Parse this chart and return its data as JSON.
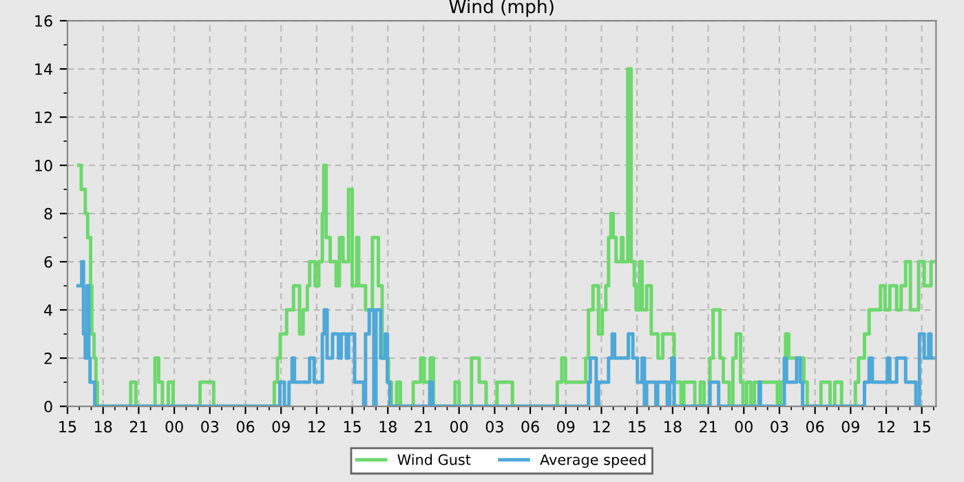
{
  "chart_data": {
    "type": "step",
    "title": "Wind (mph)",
    "legend": "bottom",
    "grid": true,
    "line_style": "solid",
    "marker": "none",
    "xlim": [
      15,
      88.2
    ],
    "ylim": [
      0,
      16
    ],
    "yticks": [
      0,
      2,
      4,
      6,
      8,
      10,
      12,
      14,
      16
    ],
    "xticks": [
      {
        "value": 15,
        "label": "15"
      },
      {
        "value": 18,
        "label": "18"
      },
      {
        "value": 21,
        "label": "21"
      },
      {
        "value": 24,
        "label": "00"
      },
      {
        "value": 27,
        "label": "03"
      },
      {
        "value": 30,
        "label": "06"
      },
      {
        "value": 33,
        "label": "09"
      },
      {
        "value": 36,
        "label": "12"
      },
      {
        "value": 39,
        "label": "15"
      },
      {
        "value": 42,
        "label": "18"
      },
      {
        "value": 45,
        "label": "21"
      },
      {
        "value": 48,
        "label": "00"
      },
      {
        "value": 51,
        "label": "03"
      },
      {
        "value": 54,
        "label": "06"
      },
      {
        "value": 57,
        "label": "09"
      },
      {
        "value": 60,
        "label": "12"
      },
      {
        "value": 63,
        "label": "15"
      },
      {
        "value": 66,
        "label": "18"
      },
      {
        "value": 69,
        "label": "21"
      },
      {
        "value": 72,
        "label": "00"
      },
      {
        "value": 75,
        "label": "03"
      },
      {
        "value": 78,
        "label": "06"
      },
      {
        "value": 81,
        "label": "09"
      },
      {
        "value": 84,
        "label": "12"
      },
      {
        "value": 87,
        "label": "15"
      }
    ],
    "series": [
      {
        "name": "Wind Gust",
        "color": "#6dd86d",
        "x": [
          15.96,
          16.16,
          16.5,
          16.7,
          16.95,
          17.05,
          17.24,
          17.4,
          17.52,
          20.33,
          20.76,
          22.38,
          22.69,
          23.0,
          23.5,
          23.9,
          26.17,
          27.32,
          32.43,
          32.7,
          32.93,
          33.47,
          34.05,
          34.56,
          34.86,
          35.21,
          35.41,
          35.87,
          36.18,
          36.48,
          36.6,
          36.8,
          37.14,
          37.64,
          37.92,
          38.22,
          38.69,
          39.0,
          39.38,
          39.54,
          40.12,
          40.7,
          41.2,
          41.52,
          42.05,
          42.3,
          42.75,
          43.06,
          44.14,
          44.76,
          45.06,
          45.57,
          45.84,
          47.66,
          48.01,
          49.05,
          49.7,
          50.28,
          51.2,
          52.5,
          56.28,
          56.66,
          56.97,
          58.68,
          58.91,
          59.29,
          59.75,
          60.07,
          60.37,
          60.6,
          60.8,
          60.99,
          61.23,
          61.69,
          61.81,
          62.22,
          62.5,
          62.77,
          62.92,
          63.23,
          63.43,
          63.81,
          64.2,
          64.77,
          65.17,
          66.13,
          66.71,
          66.94,
          67.49,
          67.87,
          68.33,
          68.65,
          69.14,
          69.41,
          69.99,
          70.27,
          70.77,
          71.08,
          71.35,
          71.73,
          71.93,
          72.24,
          72.59,
          72.89,
          74.83,
          75.1,
          75.52,
          75.79,
          77.06,
          77.34,
          78.5,
          79.27,
          79.66,
          80.24,
          81.4,
          81.67,
          82.17,
          82.56,
          83.52,
          83.9,
          84.3,
          84.88,
          85.26,
          85.64,
          86.04,
          86.73,
          87.2,
          87.78,
          87.96
        ],
        "values": [
          10,
          9,
          8,
          7,
          5,
          3,
          2,
          1,
          0,
          1,
          0,
          2,
          1,
          0,
          1,
          0,
          1,
          0,
          1,
          2,
          3,
          4,
          5,
          3,
          4,
          5,
          6,
          5,
          6,
          8,
          10,
          7,
          6,
          5,
          7,
          6,
          9,
          5,
          7,
          5,
          4,
          7,
          5,
          2,
          1,
          0,
          1,
          0,
          1,
          2,
          1,
          2,
          0,
          1,
          0,
          2,
          1,
          0,
          1,
          0,
          1,
          2,
          1,
          2,
          4,
          5,
          3,
          4,
          5,
          7,
          8,
          7,
          6,
          7,
          6,
          14,
          6,
          5,
          4,
          6,
          4,
          5,
          3,
          2,
          3,
          1,
          0,
          1,
          1,
          0,
          1,
          0,
          2,
          4,
          2,
          1,
          0,
          2,
          3,
          1,
          0,
          1,
          0,
          1,
          0,
          1,
          3,
          2,
          1,
          0,
          1,
          0,
          1,
          0,
          1,
          2,
          3,
          4,
          5,
          4,
          5,
          4,
          5,
          6,
          4,
          6,
          5,
          6,
          6
        ]
      },
      {
        "name": "Average speed",
        "color": "#4ea8d8",
        "x": [
          15.89,
          16.2,
          16.35,
          16.5,
          16.65,
          16.8,
          16.9,
          17.3,
          32.9,
          33.28,
          33.67,
          33.93,
          34.13,
          35.41,
          35.79,
          36.48,
          36.64,
          36.88,
          37.34,
          37.84,
          38.07,
          38.5,
          38.69,
          39.2,
          39.96,
          40.12,
          40.43,
          40.82,
          41.0,
          41.4,
          41.78,
          41.96,
          42.17,
          45.53,
          45.76,
          58.91,
          59.06,
          59.56,
          59.75,
          60.6,
          60.91,
          61.11,
          62.27,
          62.65,
          63.03,
          63.43,
          63.62,
          63.81,
          64.59,
          64.74,
          65.55,
          65.75,
          65.93,
          66.13,
          69.14,
          69.88,
          73.29,
          73.4,
          75.41,
          75.6,
          76.45,
          76.76,
          76.95,
          82.17,
          82.56,
          82.83,
          84.1,
          84.3,
          84.88,
          85.64,
          86.5,
          86.8,
          87.2,
          87.58,
          87.77,
          87.96
        ],
        "values": [
          5,
          6,
          3,
          2,
          5,
          2,
          1,
          0,
          1,
          0,
          1,
          2,
          1,
          2,
          1,
          3,
          4,
          2,
          3,
          2,
          3,
          2,
          3,
          1,
          0,
          3,
          4,
          0,
          4,
          2,
          3,
          1,
          0,
          1,
          0,
          1,
          2,
          0,
          1,
          2,
          3,
          2,
          3,
          2,
          1,
          2,
          0,
          1,
          0,
          1,
          0,
          1,
          2,
          0,
          1,
          0,
          1,
          0,
          2,
          1,
          2,
          1,
          0,
          1,
          2,
          1,
          2,
          1,
          2,
          1,
          0,
          3,
          2,
          3,
          2,
          2
        ]
      }
    ]
  }
}
